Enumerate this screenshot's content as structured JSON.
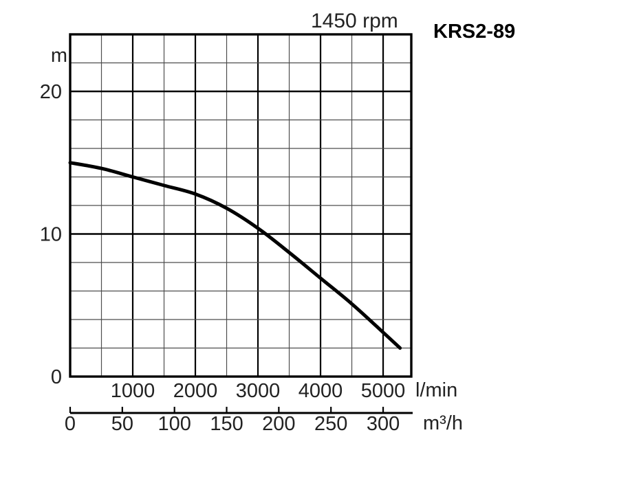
{
  "chart": {
    "title": "1450 rpm",
    "model": "KRS2-89"
  },
  "chart_data": {
    "type": "line",
    "title": "1450 rpm",
    "model": "KRS2-89",
    "x_axis_primary": {
      "unit": "l/min",
      "range": [
        0,
        5450
      ],
      "minor_step": 500,
      "major_tick_labels": [
        1000,
        2000,
        3000,
        4000,
        5000
      ]
    },
    "x_axis_secondary": {
      "unit": "m³/h",
      "tick_labels": [
        0,
        50,
        100,
        150,
        200,
        250,
        300
      ]
    },
    "y_axis": {
      "unit": "m",
      "range": [
        0,
        24
      ],
      "minor_step": 2,
      "major_tick_labels": [
        0,
        10,
        20
      ]
    },
    "series": [
      {
        "name": "head-capacity curve",
        "rpm_label": "1450 rpm",
        "points_q_lmin_h_m": [
          [
            0,
            15.0
          ],
          [
            500,
            14.6
          ],
          [
            1000,
            14.0
          ],
          [
            1500,
            13.4
          ],
          [
            2000,
            12.8
          ],
          [
            2500,
            11.8
          ],
          [
            3000,
            10.4
          ],
          [
            3500,
            8.7
          ],
          [
            4000,
            6.9
          ],
          [
            4500,
            5.1
          ],
          [
            5000,
            3.1
          ],
          [
            5270,
            2.0
          ]
        ]
      }
    ],
    "grid": "on",
    "legend": "none"
  },
  "colors": {
    "background": "#ffffff",
    "curve": "#000000",
    "grid_minor": "#4d4d4d",
    "grid_major": "#000000",
    "frame": "#000000",
    "text": "#222222"
  }
}
